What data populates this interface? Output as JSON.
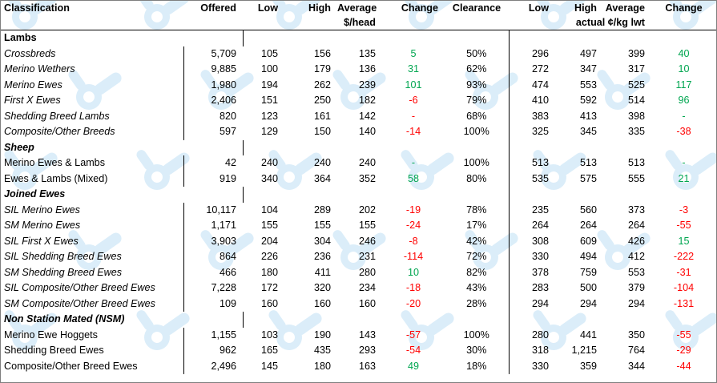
{
  "header": {
    "classification": "Classification",
    "offered": "Offered",
    "low": "Low",
    "high": "High",
    "average": "Average",
    "change": "Change",
    "clearance": "Clearance",
    "low2": "Low",
    "high2": "High",
    "average2": "Average",
    "change2": "Change",
    "unit_head": "$/head",
    "unit_kg": "actual ¢/kg lwt"
  },
  "sections": [
    {
      "title": "Lambs",
      "italic": false,
      "rows": [
        {
          "name": "Crossbreds",
          "italic": true,
          "offered": "5,709",
          "low": "105",
          "high": "156",
          "avg": "135",
          "change": "5",
          "change_sign": "pos",
          "clearance": "50%",
          "low2": "296",
          "high2": "497",
          "avg2": "399",
          "change2": "40",
          "change2_sign": "pos"
        },
        {
          "name": "Merino Wethers",
          "italic": true,
          "offered": "9,885",
          "low": "100",
          "high": "179",
          "avg": "136",
          "change": "31",
          "change_sign": "pos",
          "clearance": "62%",
          "low2": "272",
          "high2": "347",
          "avg2": "317",
          "change2": "10",
          "change2_sign": "pos"
        },
        {
          "name": "Merino Ewes",
          "italic": true,
          "offered": "1,980",
          "low": "194",
          "high": "262",
          "avg": "239",
          "change": "101",
          "change_sign": "pos",
          "clearance": "93%",
          "low2": "474",
          "high2": "553",
          "avg2": "525",
          "change2": "117",
          "change2_sign": "pos"
        },
        {
          "name": "First X Ewes",
          "italic": true,
          "offered": "2,406",
          "low": "151",
          "high": "250",
          "avg": "182",
          "change": "-6",
          "change_sign": "neg",
          "clearance": "79%",
          "low2": "410",
          "high2": "592",
          "avg2": "514",
          "change2": "96",
          "change2_sign": "pos"
        },
        {
          "name": "Shedding Breed Lambs",
          "italic": true,
          "offered": "820",
          "low": "123",
          "high": "161",
          "avg": "142",
          "change": "-",
          "change_sign": "neg",
          "clearance": "68%",
          "low2": "383",
          "high2": "413",
          "avg2": "398",
          "change2": "-",
          "change2_sign": "pos"
        },
        {
          "name": "Composite/Other Breeds",
          "italic": true,
          "offered": "597",
          "low": "129",
          "high": "150",
          "avg": "140",
          "change": "-14",
          "change_sign": "neg",
          "clearance": "100%",
          "low2": "325",
          "high2": "345",
          "avg2": "335",
          "change2": "-38",
          "change2_sign": "neg"
        }
      ]
    },
    {
      "title": "Sheep",
      "italic": true,
      "rows": [
        {
          "name": "Merino Ewes & Lambs",
          "italic": false,
          "offered": "42",
          "low": "240",
          "high": "240",
          "avg": "240",
          "change": "-",
          "change_sign": "pos",
          "clearance": "100%",
          "low2": "513",
          "high2": "513",
          "avg2": "513",
          "change2": "-",
          "change2_sign": "pos"
        },
        {
          "name": "Ewes & Lambs (Mixed)",
          "italic": false,
          "offered": "919",
          "low": "340",
          "high": "364",
          "avg": "352",
          "change": "58",
          "change_sign": "pos",
          "clearance": "80%",
          "low2": "535",
          "high2": "575",
          "avg2": "555",
          "change2": "21",
          "change2_sign": "pos"
        }
      ]
    },
    {
      "title": "Joined Ewes",
      "italic": true,
      "rows": [
        {
          "name": "SIL Merino Ewes",
          "italic": true,
          "offered": "10,117",
          "low": "104",
          "high": "289",
          "avg": "202",
          "change": "-19",
          "change_sign": "neg",
          "clearance": "78%",
          "low2": "235",
          "high2": "560",
          "avg2": "373",
          "change2": "-3",
          "change2_sign": "neg"
        },
        {
          "name": "SM Merino Ewes",
          "italic": true,
          "offered": "1,171",
          "low": "155",
          "high": "155",
          "avg": "155",
          "change": "-24",
          "change_sign": "neg",
          "clearance": "17%",
          "low2": "264",
          "high2": "264",
          "avg2": "264",
          "change2": "-55",
          "change2_sign": "neg"
        },
        {
          "name": "SIL First X Ewes",
          "italic": true,
          "offered": "3,903",
          "low": "204",
          "high": "304",
          "avg": "246",
          "change": "-8",
          "change_sign": "neg",
          "clearance": "42%",
          "low2": "308",
          "high2": "609",
          "avg2": "426",
          "change2": "15",
          "change2_sign": "pos"
        },
        {
          "name": "SIL Shedding Breed Ewes",
          "italic": true,
          "offered": "864",
          "low": "226",
          "high": "236",
          "avg": "231",
          "change": "-114",
          "change_sign": "neg",
          "clearance": "72%",
          "low2": "330",
          "high2": "494",
          "avg2": "412",
          "change2": "-222",
          "change2_sign": "neg"
        },
        {
          "name": "SM Shedding Breed Ewes",
          "italic": true,
          "offered": "466",
          "low": "180",
          "high": "411",
          "avg": "280",
          "change": "10",
          "change_sign": "pos",
          "clearance": "82%",
          "low2": "378",
          "high2": "759",
          "avg2": "553",
          "change2": "-31",
          "change2_sign": "neg"
        },
        {
          "name": "SIL Composite/Other Breed Ewes",
          "italic": true,
          "offered": "7,228",
          "low": "172",
          "high": "320",
          "avg": "234",
          "change": "-18",
          "change_sign": "neg",
          "clearance": "43%",
          "low2": "283",
          "high2": "500",
          "avg2": "379",
          "change2": "-104",
          "change2_sign": "neg"
        },
        {
          "name": "SM Composite/Other Breed Ewes",
          "italic": true,
          "offered": "109",
          "low": "160",
          "high": "160",
          "avg": "160",
          "change": "-20",
          "change_sign": "neg",
          "clearance": "28%",
          "low2": "294",
          "high2": "294",
          "avg2": "294",
          "change2": "-131",
          "change2_sign": "neg"
        }
      ]
    },
    {
      "title": "Non Station Mated (NSM)",
      "italic": true,
      "rows": [
        {
          "name": "Merino Ewe Hoggets",
          "italic": false,
          "offered": "1,155",
          "low": "103",
          "high": "190",
          "avg": "143",
          "change": "-57",
          "change_sign": "neg",
          "clearance": "100%",
          "low2": "280",
          "high2": "441",
          "avg2": "350",
          "change2": "-55",
          "change2_sign": "neg"
        },
        {
          "name": "Shedding Breed Ewes",
          "italic": false,
          "offered": "962",
          "low": "165",
          "high": "435",
          "avg": "293",
          "change": "-54",
          "change_sign": "neg",
          "clearance": "30%",
          "low2": "318",
          "high2": "1,215",
          "avg2": "764",
          "change2": "-29",
          "change2_sign": "neg"
        },
        {
          "name": "Composite/Other Breed Ewes",
          "italic": false,
          "offered": "2,496",
          "low": "145",
          "high": "180",
          "avg": "163",
          "change": "49",
          "change_sign": "pos",
          "clearance": "18%",
          "low2": "330",
          "high2": "359",
          "avg2": "344",
          "change2": "-44",
          "change2_sign": "neg"
        }
      ]
    }
  ],
  "watermark": {
    "icon": "mla-logo-watermark-icon",
    "color": "#cfe8f7"
  }
}
